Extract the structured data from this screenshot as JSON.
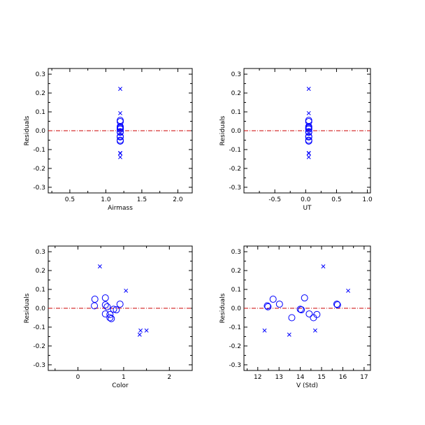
{
  "colors": {
    "points": "#0000ff",
    "zero_line": "#cc0000",
    "axes": "#000000"
  },
  "chart_data": [
    {
      "type": "scatter",
      "id": "airmass",
      "xlabel": "Airmass",
      "ylabel": "Residuals",
      "xlim": [
        0.2,
        2.2
      ],
      "ylim": [
        -0.33,
        0.33
      ],
      "xticks": [
        0.5,
        1.0,
        1.5,
        2.0
      ],
      "xticklabels": [
        "0.5",
        "1.0",
        "1.5",
        "2.0"
      ],
      "yticks": [
        -0.3,
        -0.2,
        -0.1,
        0.0,
        0.1,
        0.2,
        0.3
      ],
      "yticklabels": [
        "-0.3",
        "-0.2",
        "-0.1",
        "0.0",
        "0.1",
        "0.2",
        "0.3"
      ],
      "zero_line": 0.0,
      "series": [
        {
          "marker": "circle",
          "points": [
            [
              1.2,
              0.055
            ],
            [
              1.2,
              0.048
            ],
            [
              1.2,
              0.022
            ],
            [
              1.2,
              0.018
            ],
            [
              1.2,
              0.013
            ],
            [
              1.2,
              0.008
            ],
            [
              1.2,
              -0.005
            ],
            [
              1.2,
              -0.008
            ],
            [
              1.2,
              -0.03
            ],
            [
              1.2,
              -0.033
            ],
            [
              1.2,
              -0.05
            ],
            [
              1.2,
              -0.055
            ]
          ]
        },
        {
          "marker": "x",
          "points": [
            [
              1.2,
              0.222
            ],
            [
              1.2,
              0.093
            ],
            [
              1.2,
              -0.118
            ],
            [
              1.2,
              -0.12
            ],
            [
              1.2,
              -0.14
            ]
          ]
        }
      ]
    },
    {
      "type": "scatter",
      "id": "ut",
      "xlabel": "UT",
      "ylabel": "Residuals",
      "xlim": [
        -1.0,
        1.05
      ],
      "ylim": [
        -0.33,
        0.33
      ],
      "xticks": [
        -0.5,
        0.0,
        0.5,
        1.0
      ],
      "xticklabels": [
        "-0.5",
        "0.0",
        "0.5",
        "1.0"
      ],
      "yticks": [
        -0.3,
        -0.2,
        -0.1,
        0.0,
        0.1,
        0.2,
        0.3
      ],
      "yticklabels": [
        "-0.3",
        "-0.2",
        "-0.1",
        "0.0",
        "0.1",
        "0.2",
        "0.3"
      ],
      "zero_line": 0.0,
      "series": [
        {
          "marker": "circle",
          "points": [
            [
              0.05,
              0.055
            ],
            [
              0.05,
              0.048
            ],
            [
              0.05,
              0.022
            ],
            [
              0.05,
              0.018
            ],
            [
              0.05,
              0.013
            ],
            [
              0.05,
              0.008
            ],
            [
              0.05,
              -0.005
            ],
            [
              0.05,
              -0.008
            ],
            [
              0.05,
              -0.03
            ],
            [
              0.05,
              -0.033
            ],
            [
              0.05,
              -0.05
            ],
            [
              0.05,
              -0.055
            ]
          ]
        },
        {
          "marker": "x",
          "points": [
            [
              0.05,
              0.222
            ],
            [
              0.05,
              0.093
            ],
            [
              0.05,
              -0.118
            ],
            [
              0.05,
              -0.12
            ],
            [
              0.05,
              -0.14
            ]
          ]
        }
      ]
    },
    {
      "type": "scatter",
      "id": "color",
      "xlabel": "Color",
      "ylabel": "Residuals",
      "xlim": [
        -0.65,
        2.5
      ],
      "ylim": [
        -0.33,
        0.33
      ],
      "xticks": [
        0,
        1,
        2
      ],
      "xticklabels": [
        "0",
        "1",
        "2"
      ],
      "yticks": [
        -0.3,
        -0.2,
        -0.1,
        0.0,
        0.1,
        0.2,
        0.3
      ],
      "yticklabels": [
        "-0.3",
        "-0.2",
        "-0.1",
        "0.0",
        "0.1",
        "0.2",
        "0.3"
      ],
      "zero_line": 0.0,
      "series": [
        {
          "marker": "circle",
          "points": [
            [
              0.37,
              0.048
            ],
            [
              0.6,
              0.055
            ],
            [
              0.36,
              0.013
            ],
            [
              0.6,
              0.018
            ],
            [
              0.92,
              0.022
            ],
            [
              0.64,
              0.008
            ],
            [
              0.78,
              -0.005
            ],
            [
              0.84,
              -0.008
            ],
            [
              0.6,
              -0.03
            ],
            [
              0.7,
              -0.033
            ],
            [
              0.7,
              -0.05
            ],
            [
              0.73,
              -0.055
            ]
          ]
        },
        {
          "marker": "x",
          "points": [
            [
              0.48,
              0.222
            ],
            [
              1.05,
              0.093
            ],
            [
              1.37,
              -0.118
            ],
            [
              1.5,
              -0.118
            ],
            [
              1.35,
              -0.14
            ]
          ]
        }
      ]
    },
    {
      "type": "scatter",
      "id": "vstd",
      "xlabel": "V (Std)",
      "ylabel": "Residuals",
      "xlim": [
        11.35,
        17.3
      ],
      "ylim": [
        -0.33,
        0.33
      ],
      "xticks": [
        12,
        13,
        14,
        15,
        16,
        17
      ],
      "xticklabels": [
        "12",
        "13",
        "14",
        "15",
        "16",
        "17"
      ],
      "yticks": [
        -0.3,
        -0.2,
        -0.1,
        0.0,
        0.1,
        0.2,
        0.3
      ],
      "yticklabels": [
        "-0.3",
        "-0.2",
        "-0.1",
        "0.0",
        "0.1",
        "0.2",
        "0.3"
      ],
      "zero_line": 0.0,
      "series": [
        {
          "marker": "circle",
          "points": [
            [
              12.45,
              0.013
            ],
            [
              12.48,
              0.008
            ],
            [
              12.72,
              0.048
            ],
            [
              13.02,
              0.022
            ],
            [
              13.6,
              -0.05
            ],
            [
              14.0,
              -0.005
            ],
            [
              14.05,
              -0.008
            ],
            [
              14.2,
              0.055
            ],
            [
              14.42,
              -0.03
            ],
            [
              14.62,
              -0.05
            ],
            [
              14.78,
              -0.033
            ],
            [
              15.72,
              0.022
            ],
            [
              15.75,
              0.018
            ]
          ]
        },
        {
          "marker": "x",
          "points": [
            [
              12.32,
              -0.118
            ],
            [
              13.48,
              -0.14
            ],
            [
              14.7,
              -0.118
            ],
            [
              15.08,
              0.222
            ],
            [
              16.25,
              0.093
            ]
          ]
        }
      ]
    }
  ]
}
